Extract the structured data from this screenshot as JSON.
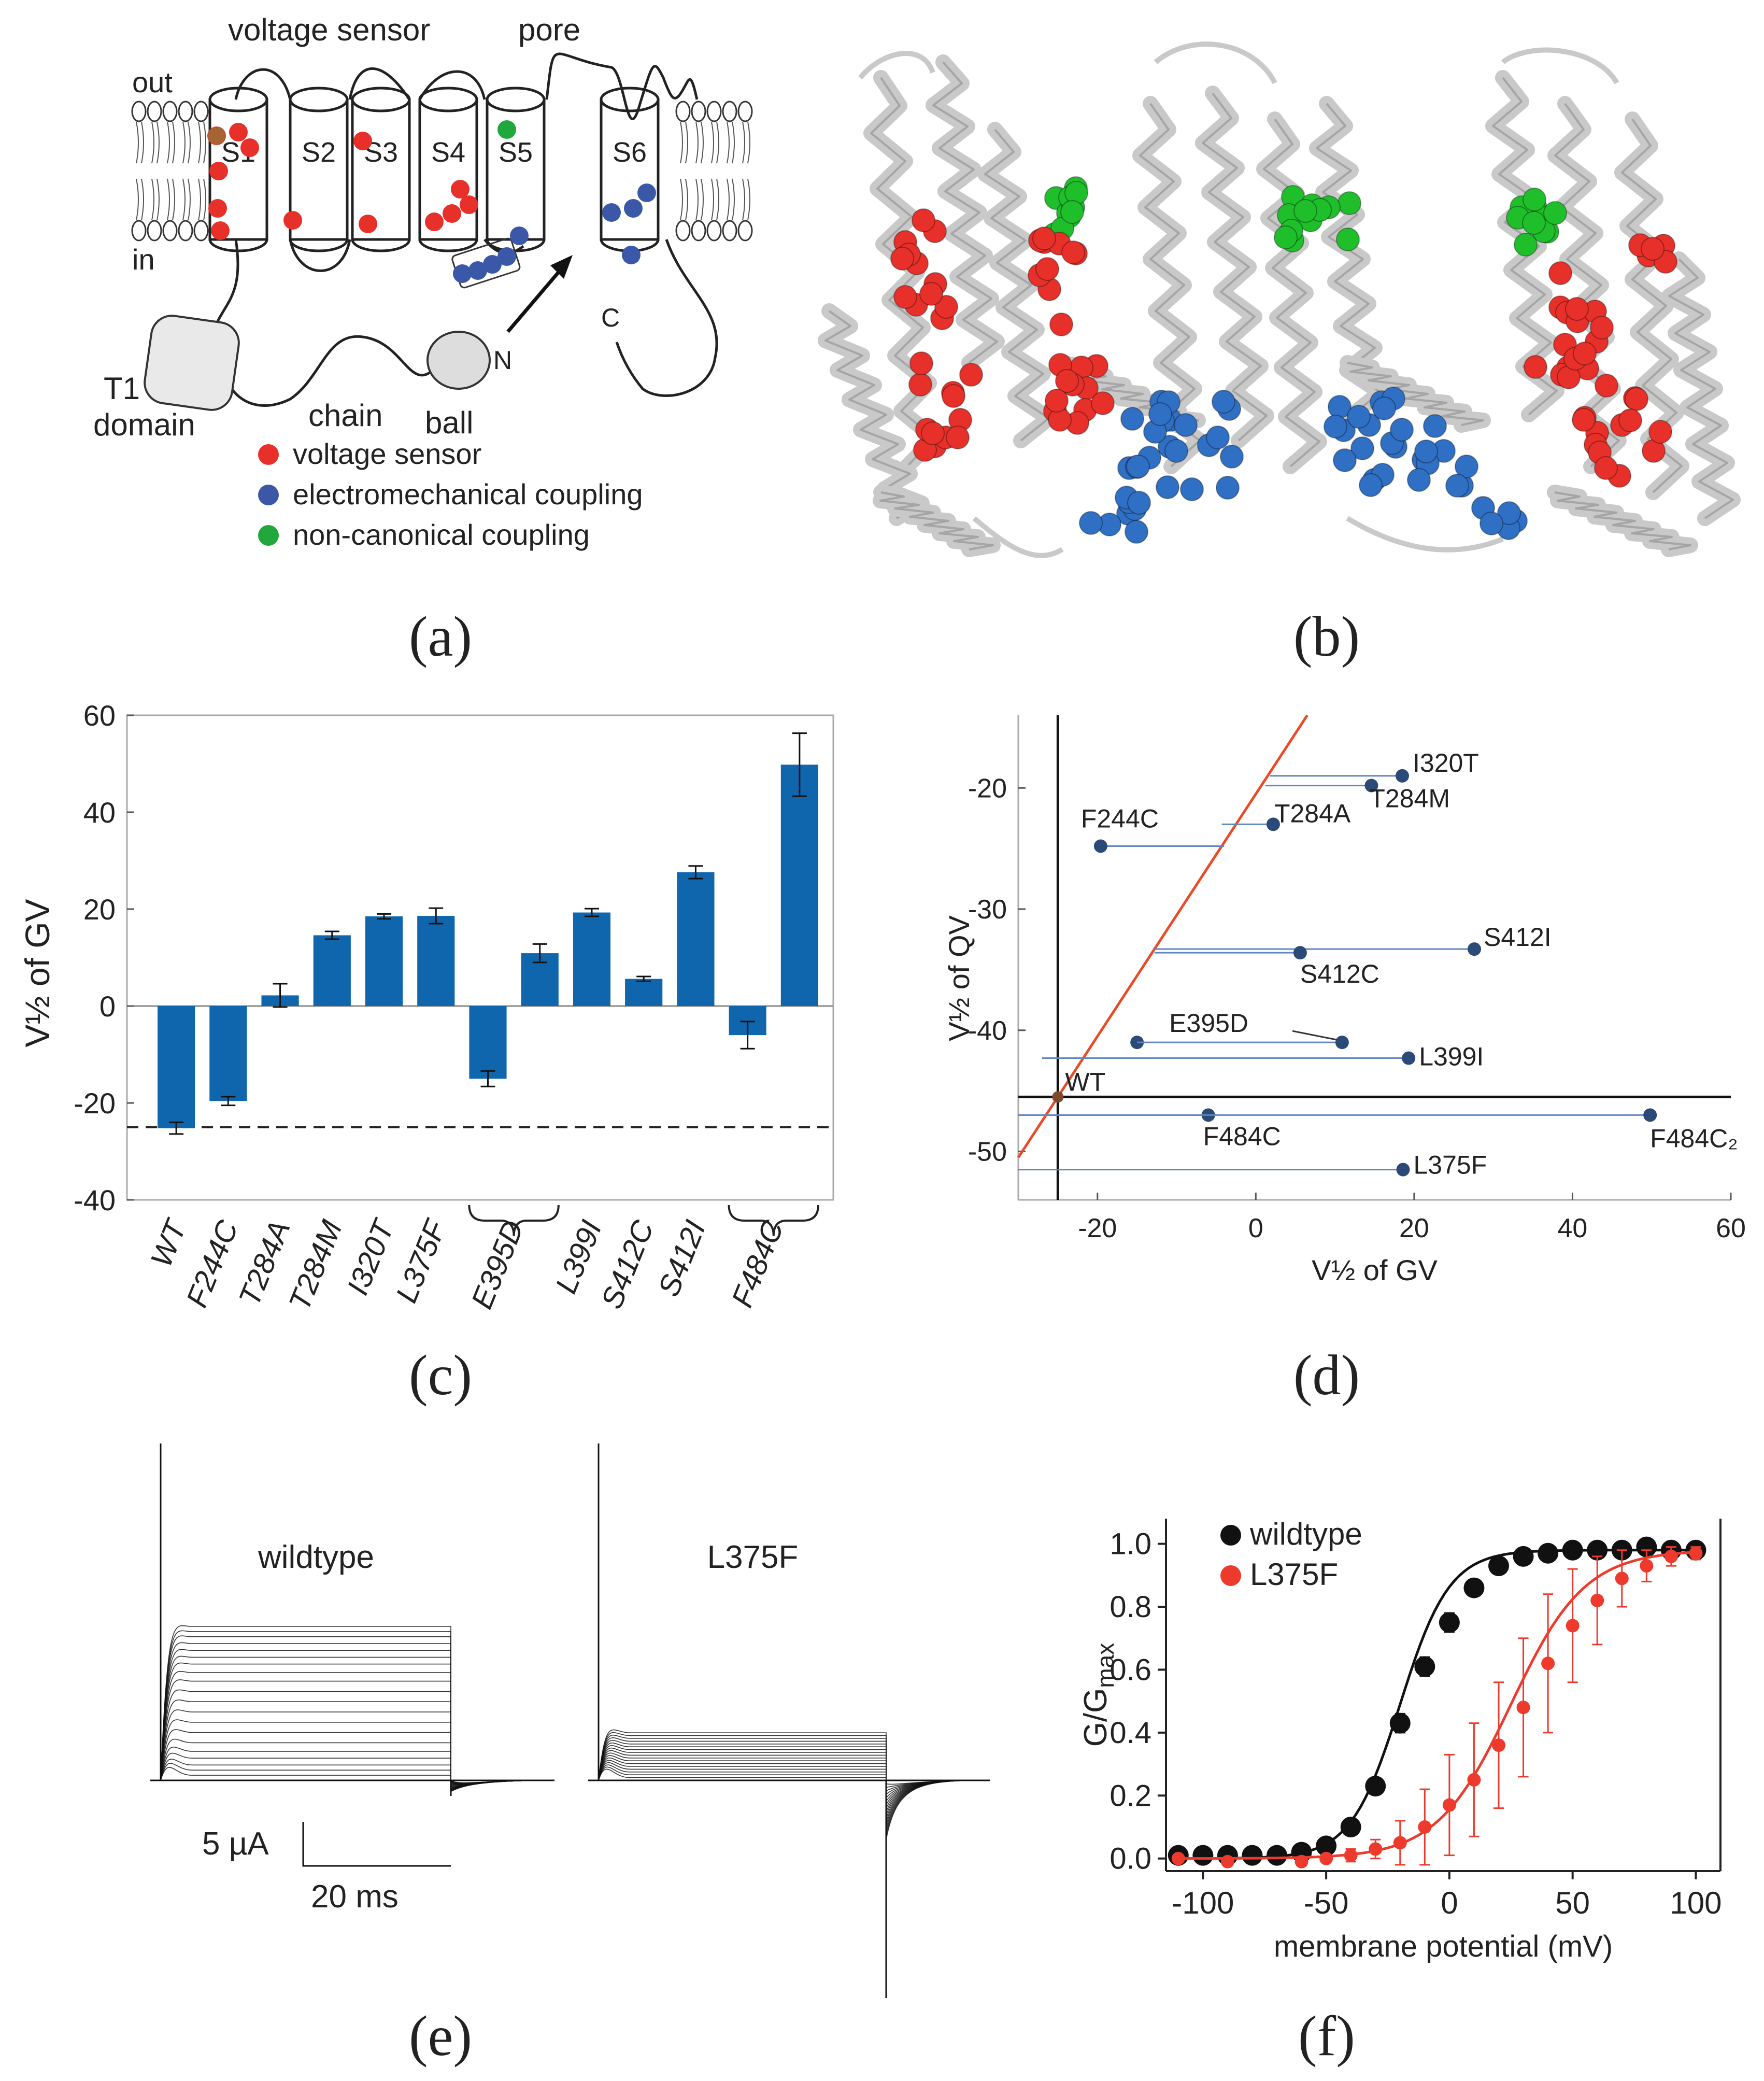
{
  "panel_labels": {
    "a": "(a)",
    "b": "(b)",
    "c": "(c)",
    "d": "(d)",
    "e": "(e)",
    "f": "(f)"
  },
  "schematic": {
    "title_voltage_sensor": "voltage sensor",
    "title_pore": "pore",
    "out": "out",
    "in": "in",
    "segments": [
      "S1",
      "S2",
      "S3",
      "S4",
      "S5",
      "S6"
    ],
    "t1": "T1",
    "domain": "domain",
    "chain": "chain",
    "ball": "ball",
    "n_term": "N",
    "c_term": "C",
    "legend": [
      {
        "label": "voltage sensor",
        "color": "#e8302a"
      },
      {
        "label": "electromechanical coupling",
        "color": "#3b57a7"
      },
      {
        "label": "non-canonical coupling",
        "color": "#21a83d"
      }
    ]
  },
  "structure": {
    "colors": {
      "protein": "#c9c9c9",
      "voltage_sensor": "#e8302a",
      "coupling": "#2f6fc4",
      "noncanonical": "#1fbf2b"
    }
  },
  "chart_data": [
    {
      "type": "bar",
      "panel": "c",
      "ylabel": "V½ of GV",
      "categories": [
        "WT",
        "F244C",
        "T284A",
        "T284M",
        "I320T",
        "L375F",
        "E395D",
        "E395D",
        "L399I",
        "S412C",
        "S412I",
        "F484C",
        "F484C"
      ],
      "x_tick_labels": [
        "WT",
        "F244C",
        "T284A",
        "T284M",
        "I320T",
        "L375F",
        "E395D",
        "L399I",
        "S412C",
        "S412I",
        "F484C"
      ],
      "values": [
        -25.2,
        -19.6,
        2.2,
        14.6,
        18.5,
        18.6,
        -15.0,
        10.9,
        19.3,
        5.6,
        27.6,
        -6.0,
        49.8
      ],
      "errors": [
        1.2,
        0.9,
        2.4,
        0.8,
        0.5,
        1.6,
        1.6,
        1.9,
        0.8,
        0.5,
        1.3,
        2.8,
        6.5
      ],
      "reference_line": -25,
      "ylim": [
        -40,
        60
      ],
      "yticks": [
        -40,
        -20,
        0,
        20,
        40,
        60
      ],
      "color": "#0f66ad"
    },
    {
      "type": "scatter",
      "panel": "d",
      "xlabel": "V½ of GV",
      "ylabel": "V½ of QV",
      "xlim": [
        -30,
        60
      ],
      "ylim": [
        -54,
        -14
      ],
      "xticks": [
        -20,
        0,
        20,
        40,
        60
      ],
      "yticks": [
        -50,
        -40,
        -30,
        -20
      ],
      "wt_point": {
        "x": -25,
        "y": -45.5
      },
      "points": [
        {
          "name": "I320T",
          "x": 18.5,
          "y": -19.0,
          "line_from": 1.8
        },
        {
          "name": "T284M",
          "x": 14.6,
          "y": -19.8,
          "line_from": 1.2
        },
        {
          "name": "T284A",
          "x": 2.2,
          "y": -23.0,
          "line_from": -4.3
        },
        {
          "name": "F244C",
          "x": -19.6,
          "y": -24.8,
          "line_from": -4.0
        },
        {
          "name": "S412I",
          "x": 27.6,
          "y": -33.3,
          "line_from": -13.0
        },
        {
          "name": "S412C",
          "x": 5.6,
          "y": -33.6,
          "line_from": -12.8
        },
        {
          "name": "E395D",
          "x": -15.0,
          "y": -41.0,
          "line_from": -15.0
        },
        {
          "name": "E395D_2",
          "x": 10.9,
          "y": -41.0,
          "line_from": -15.0
        },
        {
          "name": "L399I",
          "x": 19.3,
          "y": -42.3,
          "line_from": -27.0
        },
        {
          "name": "F484C",
          "x": -6.0,
          "y": -47.0,
          "line_from": -30.0
        },
        {
          "name": "F484C2",
          "x": 49.8,
          "y": -47.0,
          "line_from": -30.0
        },
        {
          "name": "L375F",
          "x": 18.6,
          "y": -51.5,
          "line_from": -30.0
        }
      ],
      "labels": {
        "I320T": "I320T",
        "T284M": "T284M",
        "T284A": "T284A",
        "F244C": "F244C",
        "S412I": "S412I",
        "S412C": "S412C",
        "E395D": "E395D",
        "L399I": "L399I",
        "F484C": "F484C",
        "F484C2": "F484C₂",
        "L375F": "L375F",
        "WT": "WT"
      },
      "colors": {
        "points": "#2b4a78",
        "lines": "#5f86c0",
        "diagonal": "#ea4a26",
        "axes": "#111111"
      }
    },
    {
      "type": "line",
      "panel": "e",
      "traces": [
        {
          "name": "wildtype",
          "levels": [
            0.03,
            0.06,
            0.09,
            0.13,
            0.17,
            0.22,
            0.28,
            0.34,
            0.4,
            0.46,
            0.52,
            0.58,
            0.63,
            0.68,
            0.72,
            0.76,
            0.8,
            0.84,
            0.87,
            0.9
          ]
        },
        {
          "name": "L375F",
          "levels": [
            0.02,
            0.04,
            0.06,
            0.08,
            0.1,
            0.12,
            0.14,
            0.16,
            0.18,
            0.2,
            0.22,
            0.24,
            0.26,
            0.28,
            0.3,
            0.32,
            0.34
          ]
        }
      ],
      "scale_bar": {
        "current": "5 µA",
        "time": "20 ms"
      }
    },
    {
      "type": "scatter",
      "panel": "f",
      "xlabel": "membrane potential (mV)",
      "ylabel": "G/G",
      "ylabel_sub": "max",
      "xlim": [
        -115,
        110
      ],
      "ylim": [
        -0.04,
        1.08
      ],
      "xticks": [
        -100,
        -50,
        0,
        50,
        100
      ],
      "yticks": [
        0.0,
        0.2,
        0.4,
        0.6,
        0.8,
        1.0
      ],
      "series": [
        {
          "name": "wildtype",
          "color": "#111111",
          "v_half": -20,
          "slope": 10,
          "x": [
            -110,
            -100,
            -90,
            -80,
            -70,
            -60,
            -50,
            -40,
            -30,
            -20,
            -10,
            0,
            10,
            20,
            30,
            40,
            50,
            60,
            70,
            80,
            90,
            100
          ],
          "y": [
            0.01,
            0.01,
            0.01,
            0.01,
            0.01,
            0.02,
            0.04,
            0.1,
            0.23,
            0.43,
            0.61,
            0.75,
            0.86,
            0.93,
            0.96,
            0.97,
            0.98,
            0.98,
            0.98,
            0.99,
            0.98,
            0.98
          ],
          "err": [
            0.01,
            0.01,
            0.01,
            0.01,
            0.01,
            0.01,
            0.01,
            0.01,
            0.02,
            0.03,
            0.03,
            0.03,
            0.01,
            0.01,
            0.01,
            0.01,
            0.01,
            0.01,
            0.01,
            0.01,
            0.01,
            0.01
          ]
        },
        {
          "name": "L375F",
          "color": "#ee3a2c",
          "v_half": 25,
          "slope": 15,
          "x": [
            -110,
            -90,
            -60,
            -50,
            -40,
            -30,
            -20,
            -10,
            0,
            10,
            20,
            30,
            40,
            50,
            60,
            70,
            80,
            90,
            100
          ],
          "y": [
            0.0,
            -0.01,
            -0.01,
            0.0,
            0.01,
            0.03,
            0.05,
            0.1,
            0.17,
            0.25,
            0.36,
            0.48,
            0.62,
            0.74,
            0.82,
            0.89,
            0.93,
            0.96,
            0.97
          ],
          "err": [
            0.0,
            0.01,
            0.01,
            0.01,
            0.02,
            0.03,
            0.07,
            0.12,
            0.16,
            0.18,
            0.2,
            0.22,
            0.22,
            0.18,
            0.14,
            0.09,
            0.05,
            0.03,
            0.02
          ]
        }
      ]
    }
  ]
}
